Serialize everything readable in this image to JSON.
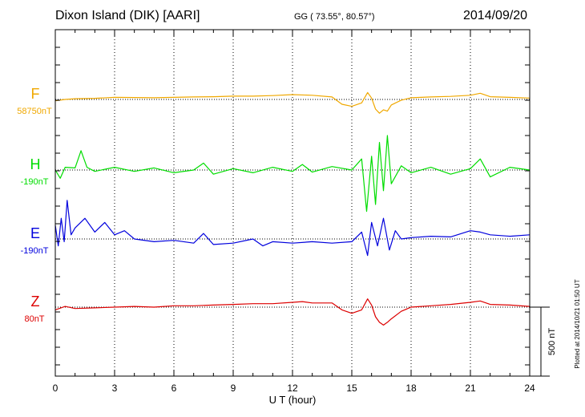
{
  "header": {
    "station": "Dixon Island (DIK)  [AARI]",
    "coords": "GG ( 73.55°,  80.57°)",
    "date": "2014/09/20"
  },
  "plot_note": "Plotted at 2014/10/21 01:50 UT",
  "chart_data": {
    "type": "line",
    "xlabel": "U T (hour)",
    "xlim": [
      0,
      24
    ],
    "x_ticks": [
      0,
      3,
      6,
      9,
      12,
      15,
      18,
      21,
      24
    ],
    "x_tick_labels": [
      "0",
      "3",
      "6",
      "9",
      "12",
      "15",
      "18",
      "21",
      "24"
    ],
    "scale_bar_label": "500 nT",
    "scale_bar_nT": 500,
    "grid": "dotted vertical lines every 3 hours; dotted baseline per series",
    "series": [
      {
        "name": "F",
        "baseline_label": "58750nT",
        "color": "#f0a800",
        "x": [
          0,
          0.5,
          1,
          2,
          3,
          4,
          5,
          6,
          7,
          8,
          9,
          10,
          11,
          12,
          13,
          14,
          14.5,
          15,
          15.5,
          15.8,
          16,
          16.2,
          16.4,
          16.6,
          16.8,
          17,
          17.5,
          18,
          19,
          20,
          21,
          21.5,
          22,
          23,
          24
        ],
        "y": [
          -10,
          0,
          5,
          8,
          15,
          14,
          12,
          15,
          18,
          20,
          24,
          24,
          28,
          35,
          30,
          18,
          -35,
          -50,
          -25,
          50,
          10,
          -70,
          -100,
          -75,
          -85,
          -40,
          -5,
          12,
          18,
          22,
          30,
          45,
          20,
          15,
          10
        ]
      },
      {
        "name": "H",
        "baseline_label": "-190nT",
        "color": "#00dd00",
        "x": [
          0,
          0.25,
          0.5,
          1,
          1.3,
          1.6,
          2,
          3,
          4,
          5,
          6,
          7,
          7.5,
          8,
          9,
          10,
          11,
          12,
          12.5,
          13,
          14,
          15,
          15.5,
          15.75,
          16,
          16.2,
          16.4,
          16.6,
          16.8,
          17,
          17.5,
          18,
          19,
          20,
          21,
          21.5,
          22,
          23,
          24
        ],
        "y": [
          0,
          -60,
          20,
          15,
          140,
          20,
          -10,
          20,
          -10,
          15,
          -20,
          0,
          50,
          -30,
          10,
          -20,
          20,
          -10,
          40,
          -15,
          25,
          0,
          80,
          -300,
          100,
          -250,
          200,
          -150,
          250,
          -100,
          30,
          -20,
          20,
          -30,
          10,
          80,
          -50,
          20,
          0
        ]
      },
      {
        "name": "E",
        "baseline_label": "-190nT",
        "color": "#0000dd",
        "x": [
          0,
          0.15,
          0.3,
          0.45,
          0.6,
          0.8,
          1,
          1.5,
          2,
          2.5,
          3,
          3.5,
          4,
          5,
          6,
          7,
          7.5,
          8,
          9,
          10,
          10.5,
          11,
          12,
          13,
          14,
          15,
          15.5,
          15.8,
          16,
          16.3,
          16.6,
          16.9,
          17.2,
          17.5,
          18,
          19,
          20,
          21,
          21.5,
          22,
          23,
          24
        ],
        "y": [
          100,
          -50,
          150,
          -20,
          280,
          30,
          80,
          150,
          50,
          120,
          30,
          60,
          0,
          -20,
          -10,
          -30,
          40,
          -40,
          -30,
          0,
          -50,
          -20,
          -30,
          -20,
          -30,
          -20,
          50,
          -120,
          120,
          -50,
          150,
          -80,
          60,
          0,
          10,
          20,
          15,
          60,
          50,
          30,
          20,
          30
        ]
      },
      {
        "name": "Z",
        "baseline_label": "80nT",
        "color": "#dd0000",
        "x": [
          0,
          0.5,
          1,
          2,
          3,
          4,
          5,
          6,
          7,
          8,
          9,
          10,
          11,
          12,
          12.5,
          13,
          14,
          14.5,
          15,
          15.5,
          15.8,
          16,
          16.2,
          16.4,
          16.6,
          16.8,
          17,
          17.5,
          18,
          19,
          20,
          21,
          21.5,
          22,
          23,
          24
        ],
        "y": [
          -20,
          5,
          -10,
          -5,
          0,
          5,
          0,
          10,
          10,
          15,
          20,
          25,
          25,
          35,
          40,
          30,
          30,
          -20,
          -45,
          -20,
          60,
          15,
          -70,
          -110,
          -130,
          -110,
          -85,
          -30,
          0,
          10,
          20,
          35,
          45,
          20,
          15,
          5
        ]
      }
    ]
  }
}
